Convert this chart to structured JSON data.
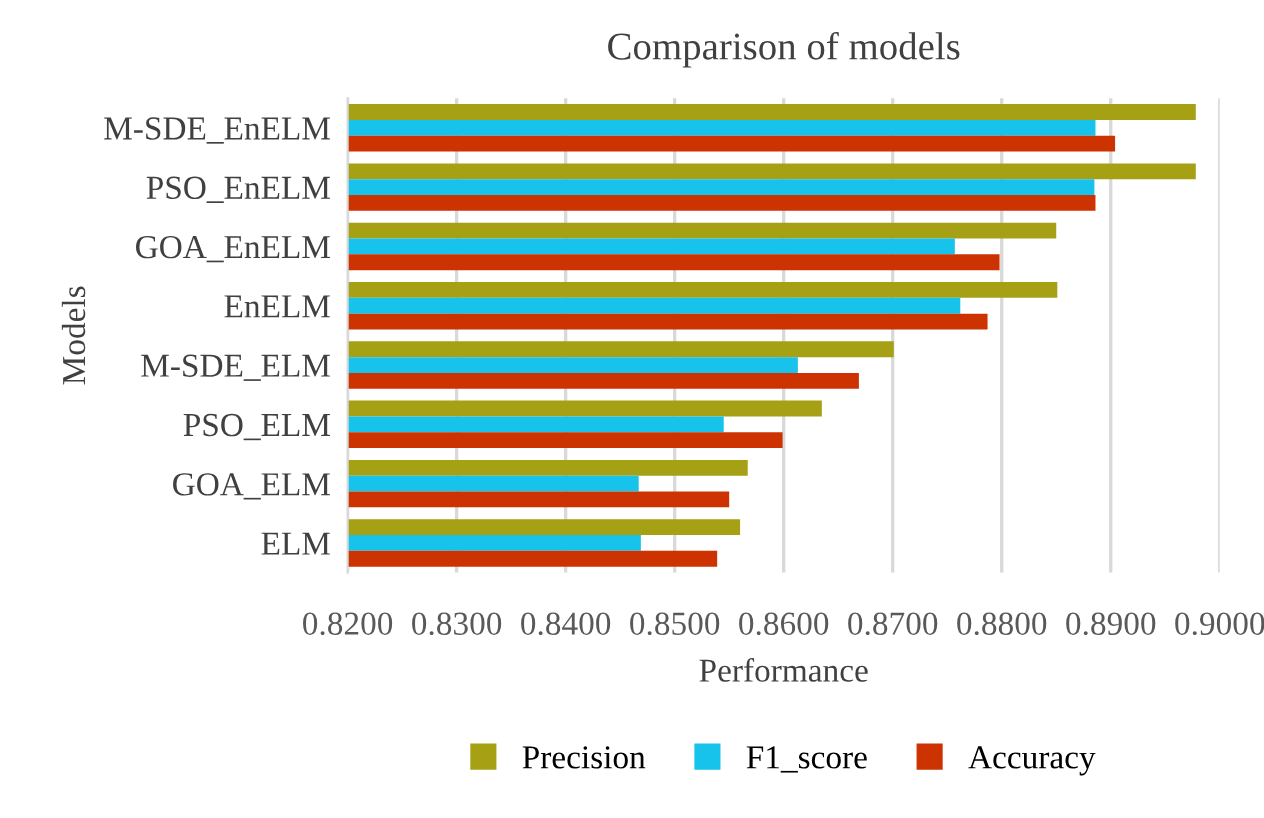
{
  "chart_data": {
    "type": "bar",
    "orientation": "horizontal",
    "title": "Comparison of models",
    "xlabel": "Performance",
    "ylabel": "Models",
    "categories": [
      "M-SDE_EnELM",
      "PSO_EnELM",
      "GOA_EnELM",
      "EnELM",
      "M-SDE_ELM",
      "PSO_ELM",
      "GOA_ELM",
      "ELM"
    ],
    "series": [
      {
        "name": "Precision",
        "color": "#a5a014",
        "values": [
          0.8978,
          0.8978,
          0.885,
          0.8851,
          0.8701,
          0.8635,
          0.8567,
          0.856
        ]
      },
      {
        "name": "F1_score",
        "color": "#17c2eb",
        "values": [
          0.8886,
          0.8885,
          0.8757,
          0.8762,
          0.8613,
          0.8545,
          0.8467,
          0.8469
        ]
      },
      {
        "name": "Accuracy",
        "color": "#cc3300",
        "values": [
          0.8904,
          0.8886,
          0.8798,
          0.8787,
          0.8669,
          0.8599,
          0.855,
          0.8539
        ]
      }
    ],
    "xlim": [
      0.82,
      0.9
    ],
    "xticks": [
      {
        "value": 0.82,
        "label": "0.8200"
      },
      {
        "value": 0.83,
        "label": "0.8300"
      },
      {
        "value": 0.84,
        "label": "0.8400"
      },
      {
        "value": 0.85,
        "label": "0.8500"
      },
      {
        "value": 0.86,
        "label": "0.8600"
      },
      {
        "value": 0.87,
        "label": "0.8700"
      },
      {
        "value": 0.88,
        "label": "0.8800"
      },
      {
        "value": 0.89,
        "label": "0.8900"
      },
      {
        "value": 0.9,
        "label": "0.9000"
      }
    ],
    "grid": "x",
    "legend": "bottom"
  }
}
